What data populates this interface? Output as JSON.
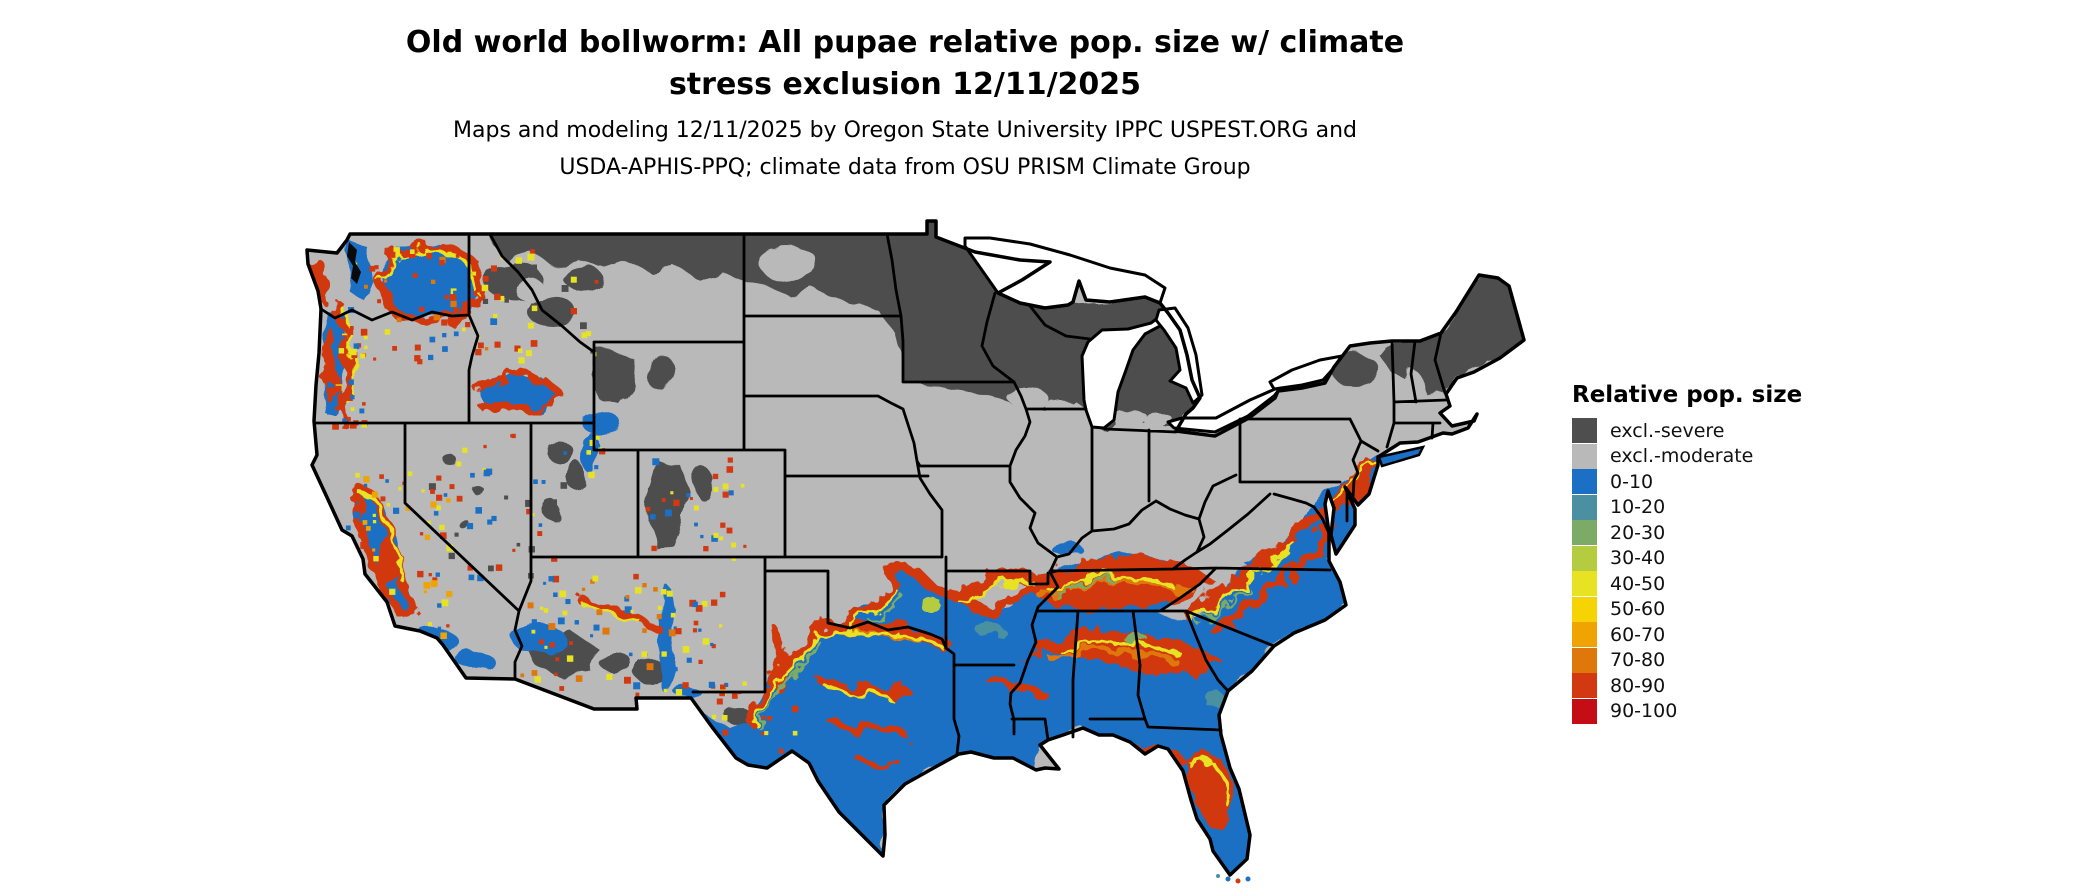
{
  "title": {
    "line1": "Old world bollworm: All pupae relative pop. size w/ climate",
    "line2": "stress exclusion 12/11/2025"
  },
  "subtitle": {
    "line1": "Maps and modeling 12/11/2025 by Oregon State University IPPC USPEST.ORG and",
    "line2": "USDA-APHIS-PPQ; climate data from OSU PRISM Climate Group"
  },
  "legend": {
    "title": "Relative pop. size",
    "items": [
      {
        "label": "excl.-severe",
        "key": "severe"
      },
      {
        "label": "excl.-moderate",
        "key": "moderate"
      },
      {
        "label": "0-10",
        "key": "b0"
      },
      {
        "label": "10-20",
        "key": "b10"
      },
      {
        "label": "20-30",
        "key": "g20"
      },
      {
        "label": "30-40",
        "key": "g30"
      },
      {
        "label": "40-50",
        "key": "y40"
      },
      {
        "label": "50-60",
        "key": "y50"
      },
      {
        "label": "60-70",
        "key": "o60"
      },
      {
        "label": "70-80",
        "key": "o70"
      },
      {
        "label": "80-90",
        "key": "r80"
      },
      {
        "label": "90-100",
        "key": "r90"
      }
    ]
  },
  "palette": {
    "severe": "#4e4e4e",
    "moderate": "#b9b9b9",
    "b0": "#1b6fc4",
    "b10": "#4a90a0",
    "g20": "#7cab68",
    "g30": "#b6cc40",
    "y40": "#e8e322",
    "y50": "#f6d403",
    "o60": "#efa404",
    "o70": "#e0770b",
    "r80": "#d23910",
    "r90": "#c50d15",
    "border": "#000000",
    "water": "#ffffff"
  },
  "map": {
    "region": "contiguous United States",
    "type": "raster choropleth with state borders",
    "zones": [
      {
        "area": "northern tier (MT, ND, SD, MN, WI, MI, northern New England, Adirondacks)",
        "class": "excl.-severe"
      },
      {
        "area": "intermountain west, central plains, Ohio valley, mid-Atlantic interior, Northeast",
        "class": "excl.-moderate"
      },
      {
        "area": "Texas, Gulf coast, Southeast, Atlantic coastal plain, Pacific coast valleys, Columbia and Snake basins, California Central Valley, southern AZ/NM",
        "class": "0-10"
      },
      {
        "area": "transition bands along edges of excluded zones (Red River, Ozarks, Tennessee, central AL/GA/MS, Carolina piedmont, central Florida, NJ/MD coast, western mountain fringes)",
        "class": "40-100 (yellow to red)"
      }
    ]
  }
}
